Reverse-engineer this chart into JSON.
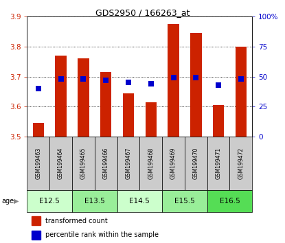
{
  "title": "GDS2950 / 166263_at",
  "samples": [
    "GSM199463",
    "GSM199464",
    "GSM199465",
    "GSM199466",
    "GSM199467",
    "GSM199468",
    "GSM199469",
    "GSM199470",
    "GSM199471",
    "GSM199472"
  ],
  "bar_values": [
    3.545,
    3.77,
    3.76,
    3.715,
    3.645,
    3.615,
    3.875,
    3.845,
    3.605,
    3.8
  ],
  "percentile_values": [
    40,
    48,
    48,
    47,
    45,
    44,
    49,
    49,
    43,
    48
  ],
  "ylim": [
    3.5,
    3.9
  ],
  "ylim_right": [
    0,
    100
  ],
  "yticks_left": [
    3.5,
    3.6,
    3.7,
    3.8,
    3.9
  ],
  "yticks_right": [
    0,
    25,
    50,
    75,
    100
  ],
  "ytick_labels_right": [
    "0",
    "25",
    "50",
    "75",
    "100%"
  ],
  "bar_color": "#cc2200",
  "dot_color": "#0000cc",
  "bar_bottom": 3.5,
  "age_groups": [
    {
      "label": "E12.5",
      "samples": [
        0,
        1
      ],
      "color": "#ccffcc"
    },
    {
      "label": "E13.5",
      "samples": [
        2,
        3
      ],
      "color": "#99ee99"
    },
    {
      "label": "E14.5",
      "samples": [
        4,
        5
      ],
      "color": "#ccffcc"
    },
    {
      "label": "E15.5",
      "samples": [
        6,
        7
      ],
      "color": "#99ee99"
    },
    {
      "label": "E16.5",
      "samples": [
        8,
        9
      ],
      "color": "#55dd55"
    }
  ],
  "sample_box_color": "#cccccc",
  "bar_width": 0.5,
  "dot_size": 28,
  "legend_items": [
    {
      "label": "transformed count",
      "color": "#cc2200"
    },
    {
      "label": "percentile rank within the sample",
      "color": "#0000cc"
    }
  ],
  "fig_width": 4.15,
  "fig_height": 3.54,
  "dpi": 100
}
